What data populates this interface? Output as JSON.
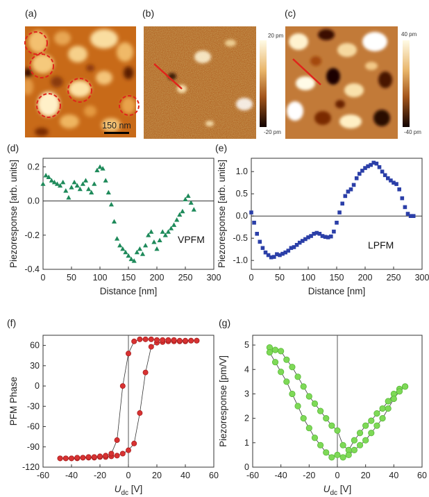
{
  "images": [
    {
      "panel": "(a)",
      "scalebar": "150 nm"
    },
    {
      "panel": "(b)",
      "colorbar": {
        "top": "20 pm",
        "bottom": "-20 pm"
      }
    },
    {
      "panel": "(c)",
      "colorbar": {
        "top": "40 pm",
        "bottom": "-40 pm"
      }
    }
  ],
  "chart_data": [
    {
      "type": "scatter",
      "panel": "(d)",
      "annotation": "VPFM",
      "xlabel": "Distance [nm]",
      "ylabel": "Piezoresponse [arb. units]",
      "xlim": [
        0,
        300
      ],
      "ylim": [
        -0.4,
        0.25
      ],
      "xticks": [
        0,
        50,
        100,
        150,
        200,
        250,
        300
      ],
      "xtick_labels": [
        "0",
        "50",
        "100",
        "150",
        "200",
        "250",
        "300"
      ],
      "yticks": [
        -0.4,
        -0.2,
        0.0,
        0.2
      ],
      "ytick_labels": [
        "-0.4",
        "-0.2",
        "0.0",
        "0.2"
      ],
      "marker": "triangle",
      "color": "#1e8a5a",
      "x": [
        0,
        5,
        10,
        15,
        20,
        25,
        30,
        35,
        40,
        45,
        50,
        55,
        60,
        65,
        70,
        75,
        80,
        85,
        90,
        95,
        100,
        105,
        110,
        115,
        120,
        125,
        130,
        135,
        140,
        145,
        150,
        155,
        160,
        165,
        170,
        175,
        180,
        185,
        190,
        195,
        200,
        205,
        210,
        215,
        220,
        225,
        230,
        235,
        240,
        245,
        250,
        255,
        260,
        265
      ],
      "y": [
        0.1,
        0.15,
        0.14,
        0.12,
        0.11,
        0.1,
        0.09,
        0.11,
        0.06,
        0.02,
        0.08,
        0.11,
        0.09,
        0.07,
        0.1,
        0.12,
        0.07,
        0.05,
        0.1,
        0.18,
        0.2,
        0.19,
        0.12,
        0.05,
        -0.02,
        -0.12,
        -0.22,
        -0.26,
        -0.28,
        -0.3,
        -0.32,
        -0.34,
        -0.35,
        -0.3,
        -0.28,
        -0.31,
        -0.26,
        -0.2,
        -0.18,
        -0.24,
        -0.28,
        -0.23,
        -0.18,
        -0.2,
        -0.18,
        -0.16,
        -0.14,
        -0.11,
        -0.08,
        -0.06,
        0.01,
        0.03,
        -0.01,
        -0.05
      ]
    },
    {
      "type": "scatter",
      "panel": "(e)",
      "annotation": "LPFM",
      "xlabel": "Distance [nm]",
      "ylabel": "Piezoresponse [arb. units]",
      "xlim": [
        0,
        300
      ],
      "ylim": [
        -1.2,
        1.3
      ],
      "xticks": [
        0,
        50,
        100,
        150,
        200,
        250,
        300
      ],
      "xtick_labels": [
        "0",
        "50",
        "100",
        "150",
        "200",
        "250",
        "300"
      ],
      "yticks": [
        -1.0,
        -0.5,
        0.0,
        0.5,
        1.0
      ],
      "ytick_labels": [
        "-1.0",
        "-0.5",
        "0.0",
        "0.5",
        "1.0"
      ],
      "marker": "square",
      "color": "#2b3fa8",
      "x": [
        0,
        5,
        10,
        15,
        20,
        25,
        30,
        35,
        40,
        45,
        50,
        55,
        60,
        65,
        70,
        75,
        80,
        85,
        90,
        95,
        100,
        105,
        110,
        115,
        120,
        125,
        130,
        135,
        140,
        145,
        150,
        155,
        160,
        165,
        170,
        175,
        180,
        185,
        190,
        195,
        200,
        205,
        210,
        215,
        220,
        225,
        230,
        235,
        240,
        245,
        250,
        255,
        260,
        265,
        270,
        275,
        280,
        285
      ],
      "y": [
        0.08,
        -0.15,
        -0.4,
        -0.58,
        -0.72,
        -0.82,
        -0.88,
        -0.93,
        -0.92,
        -0.86,
        -0.88,
        -0.85,
        -0.82,
        -0.78,
        -0.72,
        -0.7,
        -0.65,
        -0.6,
        -0.56,
        -0.52,
        -0.48,
        -0.45,
        -0.4,
        -0.38,
        -0.4,
        -0.45,
        -0.47,
        -0.48,
        -0.46,
        -0.35,
        -0.15,
        0.08,
        0.28,
        0.45,
        0.55,
        0.6,
        0.7,
        0.85,
        0.95,
        1.02,
        1.08,
        1.12,
        1.15,
        1.2,
        1.18,
        1.1,
        1.0,
        0.92,
        0.85,
        0.8,
        0.75,
        0.72,
        0.6,
        0.4,
        0.2,
        0.05,
        0.0,
        0.0
      ]
    },
    {
      "type": "line",
      "panel": "(f)",
      "xlabel_main": "U",
      "xlabel_sub": "dc",
      "xlabel_unit": " [V]",
      "ylabel": "PFM Phase",
      "xlim": [
        -60,
        60
      ],
      "ylim": [
        -120,
        75
      ],
      "xticks": [
        -60,
        -40,
        -20,
        0,
        20,
        40,
        60
      ],
      "xtick_labels": [
        "-60",
        "-40",
        "-20",
        "0",
        "20",
        "40",
        "60"
      ],
      "yticks": [
        -120,
        -90,
        -60,
        -30,
        0,
        30,
        60
      ],
      "ytick_labels": [
        "-120",
        "-90",
        "-60",
        "-30",
        "0",
        "30",
        "60"
      ],
      "marker": "circle",
      "color": "#d83232",
      "x": [
        -48,
        -44,
        -40,
        -36,
        -32,
        -28,
        -24,
        -20,
        -16,
        -12,
        -8,
        -4,
        0,
        4,
        8,
        12,
        16,
        20,
        24,
        28,
        32,
        36,
        40,
        44,
        48,
        48,
        44,
        40,
        36,
        32,
        28,
        24,
        20,
        16,
        12,
        8,
        4,
        0,
        -4,
        -8,
        -12,
        -16,
        -20,
        -24,
        -28,
        -32,
        -36,
        -40,
        -44,
        -48
      ],
      "y": [
        -107,
        -107,
        -107,
        -107,
        -106,
        -106,
        -106,
        -105,
        -105,
        -104,
        -103,
        -100,
        -95,
        -85,
        -40,
        20,
        58,
        64,
        65,
        66,
        66,
        66,
        66,
        67,
        67,
        67,
        67,
        67,
        67,
        68,
        68,
        68,
        68,
        69,
        69,
        69,
        66,
        48,
        0,
        -80,
        -100,
        -103,
        -104,
        -105,
        -105,
        -106,
        -106,
        -107,
        -107,
        -107
      ]
    },
    {
      "type": "line",
      "panel": "(g)",
      "xlabel_main": "U",
      "xlabel_sub": "dc",
      "xlabel_unit": " [V]",
      "ylabel": "Piezoresponse [pm/V]",
      "xlim": [
        -60,
        60
      ],
      "ylim": [
        0,
        5.4
      ],
      "xticks": [
        -60,
        -40,
        -20,
        0,
        20,
        40,
        60
      ],
      "xtick_labels": [
        "-60",
        "-40",
        "-20",
        "0",
        "20",
        "40",
        "60"
      ],
      "yticks": [
        0,
        1,
        2,
        3,
        4,
        5
      ],
      "ytick_labels": [
        "0",
        "1",
        "2",
        "3",
        "4",
        "5"
      ],
      "marker": "circle",
      "color": "#7ed957",
      "x": [
        -48,
        -44,
        -40,
        -36,
        -32,
        -28,
        -24,
        -20,
        -16,
        -12,
        -8,
        -4,
        0,
        4,
        8,
        12,
        16,
        20,
        24,
        28,
        32,
        36,
        40,
        44,
        48,
        48,
        44,
        40,
        36,
        32,
        28,
        24,
        20,
        16,
        12,
        8,
        4,
        0,
        -4,
        -8,
        -12,
        -16,
        -20,
        -24,
        -28,
        -32,
        -36,
        -40,
        -44,
        -48
      ],
      "y": [
        4.9,
        4.8,
        4.75,
        4.4,
        4.1,
        3.7,
        3.3,
        2.9,
        2.6,
        2.3,
        2.0,
        1.7,
        1.5,
        0.9,
        0.7,
        1.1,
        1.4,
        1.7,
        1.9,
        2.2,
        2.4,
        2.7,
        3.0,
        3.2,
        3.3,
        3.3,
        3.1,
        2.8,
        2.4,
        2.0,
        1.7,
        1.4,
        1.1,
        0.9,
        0.7,
        0.5,
        0.4,
        0.5,
        0.4,
        0.6,
        0.9,
        1.2,
        1.6,
        2.0,
        2.5,
        3.0,
        3.5,
        3.9,
        4.3,
        4.7
      ]
    }
  ]
}
